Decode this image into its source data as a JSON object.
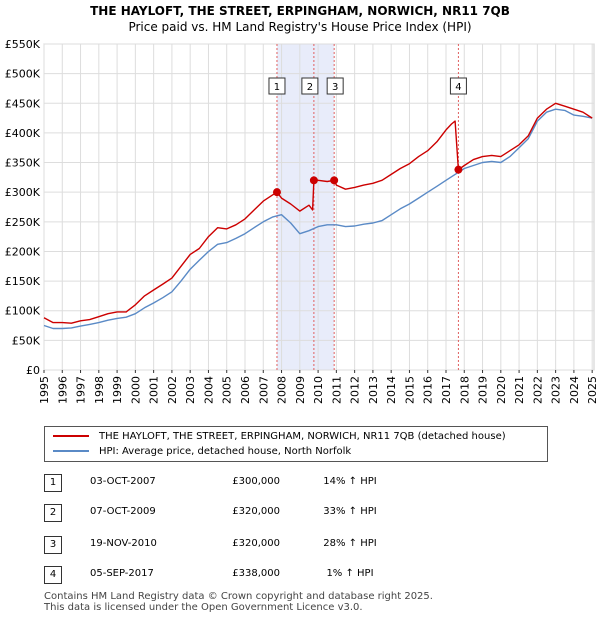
{
  "chart_data": {
    "type": "line",
    "title": "THE HAYLOFT, THE STREET, ERPINGHAM, NORWICH, NR11 7QB",
    "subtitle": "Price paid vs. HM Land Registry's House Price Index (HPI)",
    "xlim": [
      1995,
      2025.1
    ],
    "ylim": [
      0,
      550000
    ],
    "y_ticks": [
      {
        "value": 0,
        "label": "£0"
      },
      {
        "value": 50000,
        "label": "£50K"
      },
      {
        "value": 100000,
        "label": "£100K"
      },
      {
        "value": 150000,
        "label": "£150K"
      },
      {
        "value": 200000,
        "label": "£200K"
      },
      {
        "value": 250000,
        "label": "£250K"
      },
      {
        "value": 300000,
        "label": "£300K"
      },
      {
        "value": 350000,
        "label": "£350K"
      },
      {
        "value": 400000,
        "label": "£400K"
      },
      {
        "value": 450000,
        "label": "£450K"
      },
      {
        "value": 500000,
        "label": "£500K"
      },
      {
        "value": 550000,
        "label": "£550K"
      }
    ],
    "x_ticks": [
      "1995",
      "1996",
      "1997",
      "1998",
      "1999",
      "2000",
      "2001",
      "2002",
      "2003",
      "2004",
      "2005",
      "2006",
      "2007",
      "2008",
      "2009",
      "2010",
      "2011",
      "2012",
      "2013",
      "2014",
      "2015",
      "2016",
      "2017",
      "2018",
      "2019",
      "2020",
      "2021",
      "2022",
      "2023",
      "2024",
      "2025"
    ],
    "grid": true,
    "shaded_span": [
      2007.75,
      2010.88
    ],
    "series": [
      {
        "name": "THE HAYLOFT, THE STREET, ERPINGHAM, NORWICH, NR11 7QB (detached house)",
        "color": "#cc0000",
        "x": [
          1995.0,
          1995.5,
          1996.0,
          1996.5,
          1997.0,
          1997.5,
          1998.0,
          1998.5,
          1999.0,
          1999.5,
          2000.0,
          2000.5,
          2001.0,
          2001.5,
          2002.0,
          2002.5,
          2003.0,
          2003.5,
          2004.0,
          2004.5,
          2005.0,
          2005.5,
          2006.0,
          2006.5,
          2007.0,
          2007.5,
          2007.75,
          2008.0,
          2008.5,
          2009.0,
          2009.5,
          2009.7,
          2009.77,
          2010.0,
          2010.5,
          2010.88,
          2011.0,
          2011.5,
          2012.0,
          2012.5,
          2013.0,
          2013.5,
          2014.0,
          2014.5,
          2015.0,
          2015.5,
          2016.0,
          2016.5,
          2017.0,
          2017.3,
          2017.5,
          2017.68,
          2018.0,
          2018.5,
          2019.0,
          2019.5,
          2020.0,
          2020.5,
          2021.0,
          2021.5,
          2022.0,
          2022.5,
          2023.0,
          2023.5,
          2024.0,
          2024.5,
          2025.0
        ],
        "values": [
          88000,
          80000,
          80000,
          79000,
          83000,
          85000,
          90000,
          95000,
          98000,
          98000,
          110000,
          125000,
          135000,
          145000,
          155000,
          175000,
          195000,
          205000,
          225000,
          240000,
          238000,
          245000,
          255000,
          270000,
          285000,
          295000,
          300000,
          290000,
          280000,
          268000,
          278000,
          270000,
          320000,
          320000,
          318000,
          320000,
          312000,
          305000,
          308000,
          312000,
          315000,
          320000,
          330000,
          340000,
          348000,
          360000,
          370000,
          385000,
          405000,
          415000,
          420000,
          338000,
          345000,
          355000,
          360000,
          362000,
          360000,
          370000,
          380000,
          395000,
          425000,
          440000,
          450000,
          445000,
          440000,
          435000,
          425000
        ]
      },
      {
        "name": "HPI: Average price, detached house, North Norfolk",
        "color": "#5a8ac6",
        "x": [
          1995.0,
          1995.5,
          1996.0,
          1996.5,
          1997.0,
          1997.5,
          1998.0,
          1998.5,
          1999.0,
          1999.5,
          2000.0,
          2000.5,
          2001.0,
          2001.5,
          2002.0,
          2002.5,
          2003.0,
          2003.5,
          2004.0,
          2004.5,
          2005.0,
          2005.5,
          2006.0,
          2006.5,
          2007.0,
          2007.5,
          2008.0,
          2008.5,
          2009.0,
          2009.5,
          2010.0,
          2010.5,
          2011.0,
          2011.5,
          2012.0,
          2012.5,
          2013.0,
          2013.5,
          2014.0,
          2014.5,
          2015.0,
          2015.5,
          2016.0,
          2016.5,
          2017.0,
          2017.5,
          2018.0,
          2018.5,
          2019.0,
          2019.5,
          2020.0,
          2020.5,
          2021.0,
          2021.5,
          2022.0,
          2022.5,
          2023.0,
          2023.5,
          2024.0,
          2024.5,
          2025.0
        ],
        "values": [
          75000,
          70000,
          70000,
          71000,
          74000,
          77000,
          80000,
          84000,
          87000,
          89000,
          95000,
          105000,
          113000,
          122000,
          132000,
          150000,
          170000,
          185000,
          200000,
          212000,
          215000,
          222000,
          230000,
          240000,
          250000,
          258000,
          262000,
          248000,
          230000,
          235000,
          242000,
          245000,
          245000,
          242000,
          243000,
          246000,
          248000,
          252000,
          262000,
          272000,
          280000,
          290000,
          300000,
          310000,
          320000,
          330000,
          340000,
          345000,
          350000,
          352000,
          350000,
          360000,
          375000,
          390000,
          420000,
          435000,
          440000,
          438000,
          430000,
          428000,
          425000
        ]
      }
    ],
    "markers": [
      {
        "label": "1",
        "x": 2007.75,
        "value": 300000
      },
      {
        "label": "2",
        "x": 2009.77,
        "value": 320000
      },
      {
        "label": "3",
        "x": 2010.88,
        "value": 320000
      },
      {
        "label": "4",
        "x": 2017.68,
        "value": 338000
      }
    ]
  },
  "legend": {
    "property_label": "THE HAYLOFT, THE STREET, ERPINGHAM, NORWICH, NR11 7QB (detached house)",
    "hpi_label": "HPI: Average price, detached house, North Norfolk",
    "property_color": "#cc0000",
    "hpi_color": "#5a8ac6"
  },
  "sales": [
    {
      "num": "1",
      "date": "03-OCT-2007",
      "price": "£300,000",
      "hpi": "14% ↑ HPI"
    },
    {
      "num": "2",
      "date": "07-OCT-2009",
      "price": "£320,000",
      "hpi": "33% ↑ HPI"
    },
    {
      "num": "3",
      "date": "19-NOV-2010",
      "price": "£320,000",
      "hpi": "28% ↑ HPI"
    },
    {
      "num": "4",
      "date": "05-SEP-2017",
      "price": "£338,000",
      "hpi": "1% ↑ HPI"
    }
  ],
  "footer": {
    "line1": "Contains HM Land Registry data © Crown copyright and database right 2025.",
    "line2": "This data is licensed under the Open Government Licence v3.0."
  }
}
